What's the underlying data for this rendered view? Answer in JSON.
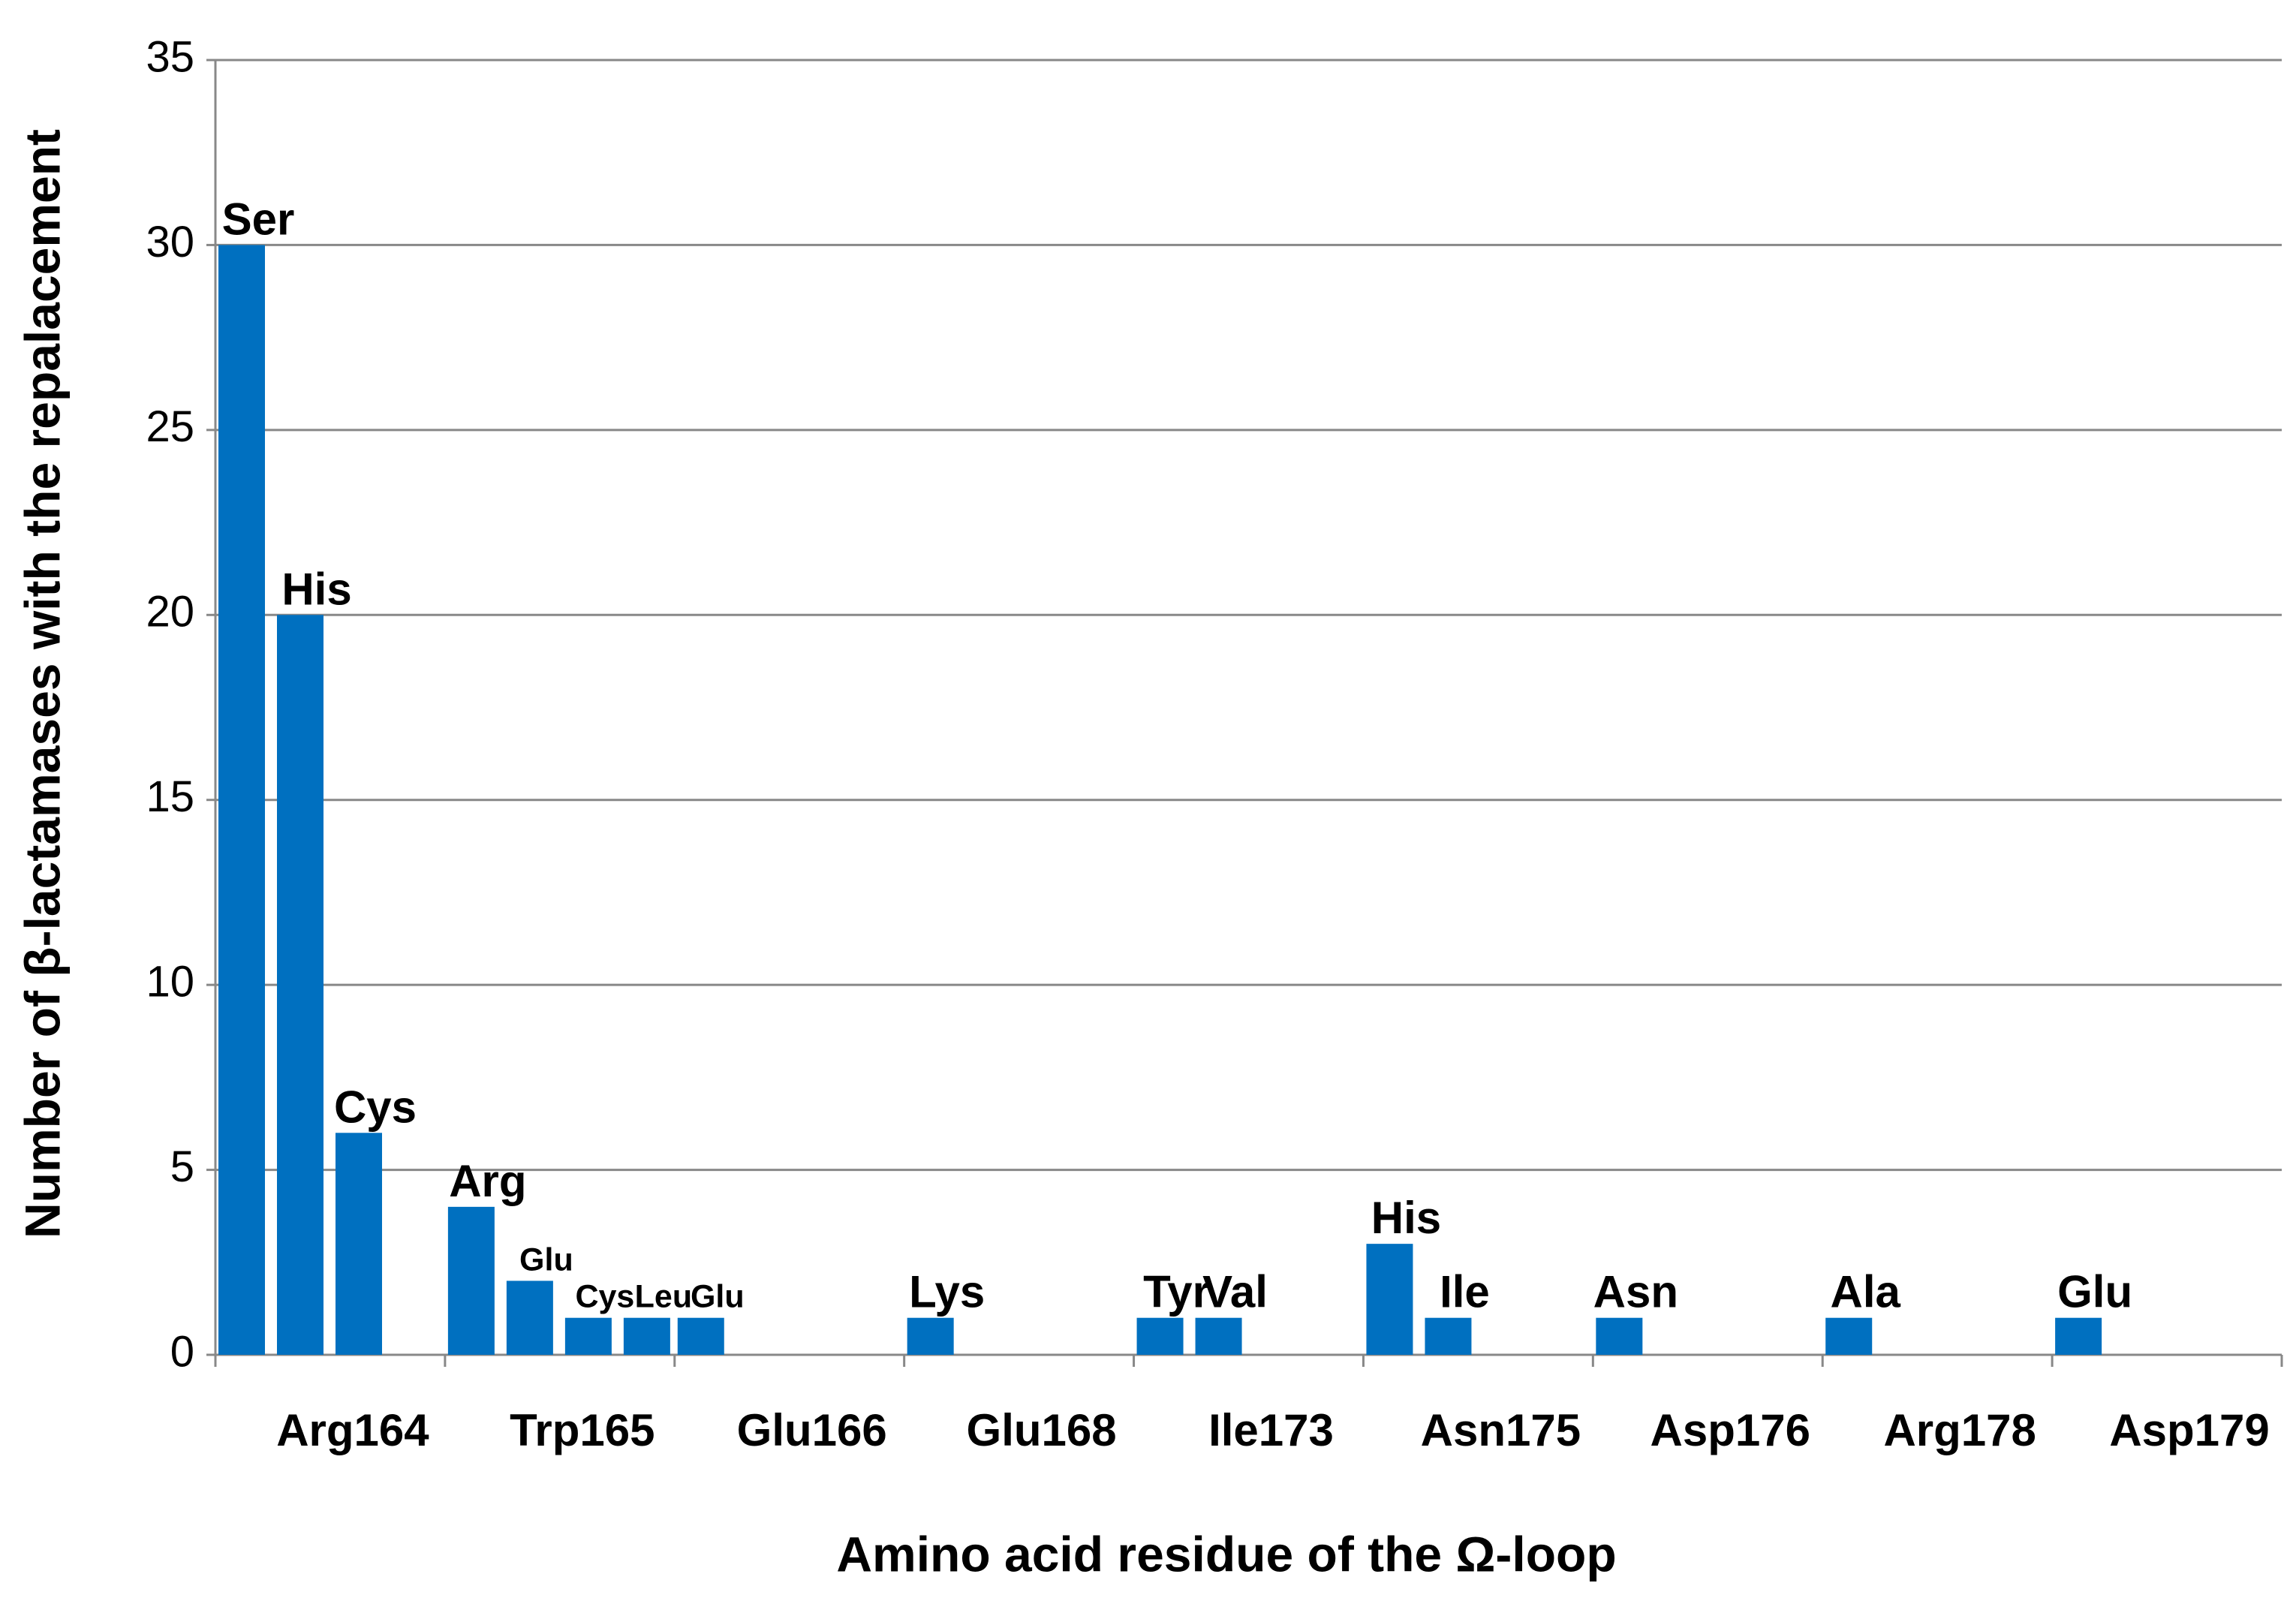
{
  "chart_data": {
    "type": "bar",
    "x_label": "Amino acid residue of the Ω-loop",
    "y_label": "Number of β-lactamases with the repalacement",
    "color": "#0070c0",
    "ylim": [
      0,
      35
    ],
    "yticks": [
      0,
      5,
      10,
      15,
      20,
      25,
      30,
      35
    ],
    "grid": true,
    "groups": [
      {
        "category": "Arg164",
        "bars": [
          {
            "label": "Ser",
            "value": 30
          },
          {
            "label": "His",
            "value": 20
          },
          {
            "label": "Cys",
            "value": 6
          }
        ]
      },
      {
        "category": "Trp165",
        "bars": [
          {
            "label": "Arg",
            "value": 4
          },
          {
            "label": "Glu",
            "value": 2
          },
          {
            "label": "Cys",
            "value": 1
          },
          {
            "label": "Leu",
            "value": 1
          }
        ]
      },
      {
        "category": "Glu166",
        "bars": [
          {
            "label": "Glu",
            "value": 1
          }
        ]
      },
      {
        "category": "Glu168",
        "bars": [
          {
            "label": "Lys",
            "value": 1
          }
        ]
      },
      {
        "category": "Ile173",
        "bars": [
          {
            "label": "Tyr",
            "value": 1
          },
          {
            "label": "Val",
            "value": 1
          }
        ]
      },
      {
        "category": "Asn175",
        "bars": [
          {
            "label": "His",
            "value": 3
          },
          {
            "label": "Ile",
            "value": 1
          }
        ]
      },
      {
        "category": "Asp176",
        "bars": [
          {
            "label": "Asn",
            "value": 1
          }
        ]
      },
      {
        "category": "Arg178",
        "bars": [
          {
            "label": "Ala",
            "value": 1
          }
        ]
      },
      {
        "category": "Asp179",
        "bars": [
          {
            "label": "Glu",
            "value": 1
          }
        ]
      }
    ]
  }
}
